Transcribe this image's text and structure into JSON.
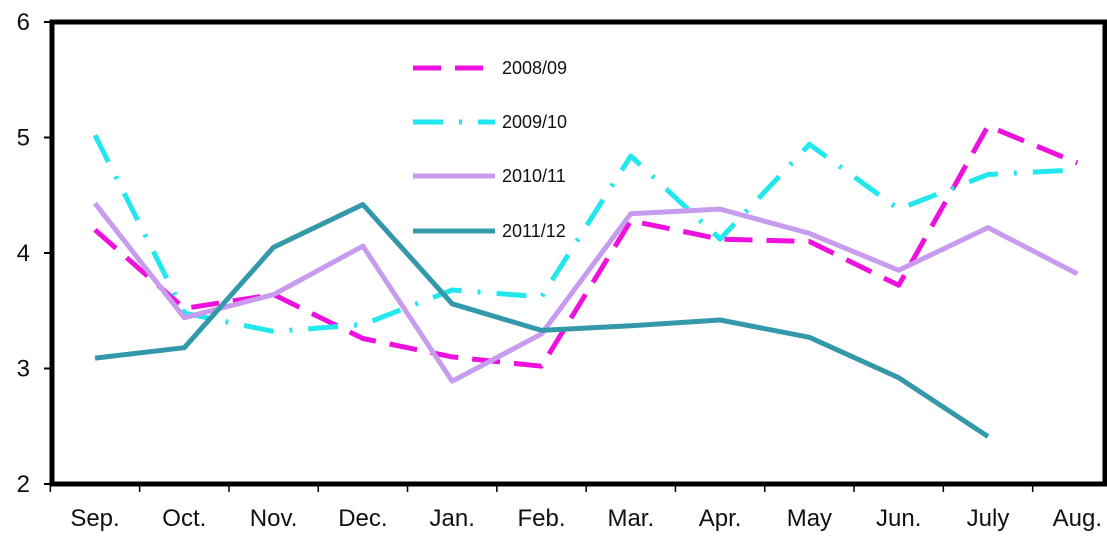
{
  "chart_data": {
    "type": "line",
    "categories": [
      "Sep.",
      "Oct.",
      "Nov.",
      "Dec.",
      "Jan.",
      "Feb.",
      "Mar.",
      "Apr.",
      "May",
      "Jun.",
      "July",
      "Aug."
    ],
    "ylim": [
      2,
      6
    ],
    "yticks": [
      "2",
      "3",
      "4",
      "5",
      "6"
    ],
    "grid": false,
    "legend_position": "top-center",
    "series": [
      {
        "name": "2008/09",
        "color": "#ee11dd",
        "dash": "dashed",
        "values": [
          4.2,
          3.52,
          3.64,
          3.26,
          3.1,
          3.02,
          4.28,
          4.12,
          4.1,
          3.72,
          5.1,
          4.78
        ]
      },
      {
        "name": "2009/10",
        "color": "#22e8ee",
        "dash": "dash-dot",
        "values": [
          5.02,
          3.48,
          3.32,
          3.38,
          3.68,
          3.62,
          4.84,
          4.12,
          4.94,
          4.38,
          4.68,
          4.72
        ]
      },
      {
        "name": "2010/11",
        "color": "#c79bee",
        "dash": "solid",
        "values": [
          4.43,
          3.44,
          3.64,
          4.06,
          2.89,
          3.3,
          4.34,
          4.38,
          4.17,
          3.85,
          4.22,
          3.82
        ]
      },
      {
        "name": "2011/12",
        "color": "#3399aa",
        "dash": "solid",
        "values": [
          3.09,
          3.18,
          4.05,
          4.42,
          3.56,
          3.33,
          3.37,
          3.42,
          3.27,
          2.92,
          2.41,
          null
        ]
      }
    ]
  }
}
